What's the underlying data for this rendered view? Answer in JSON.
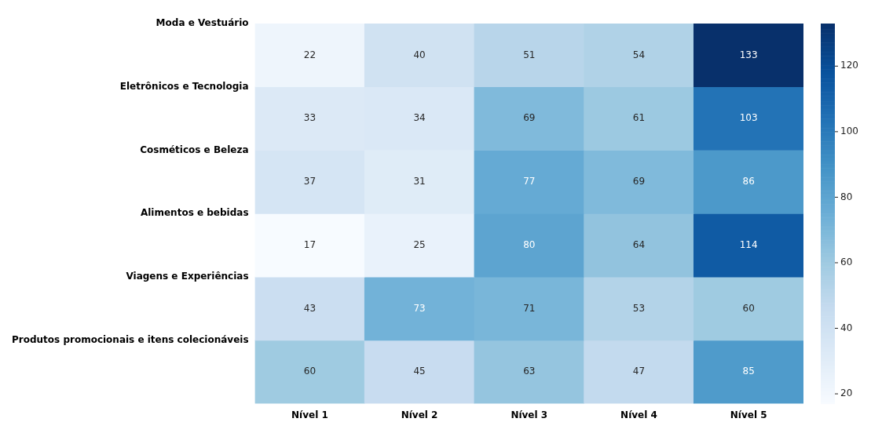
{
  "chart_data": {
    "type": "heatmap",
    "categories": [
      "Nível 1",
      "Nível 2",
      "Nível 3",
      "Nível 4",
      "Nível 5"
    ],
    "y_categories": [
      "Moda e Vestuário",
      "Eletrônicos e Tecnologia",
      "Cosméticos e Beleza",
      "Alimentos e bebidas",
      "Viagens e Experiências",
      "Produtos promocionais e itens colecionáveis"
    ],
    "cells": [
      [
        22,
        40,
        51,
        54,
        133
      ],
      [
        33,
        34,
        69,
        61,
        103
      ],
      [
        37,
        31,
        77,
        69,
        86
      ],
      [
        17,
        25,
        80,
        64,
        114
      ],
      [
        43,
        73,
        71,
        53,
        60
      ],
      [
        60,
        45,
        63,
        47,
        85
      ]
    ],
    "clim": [
      17,
      133
    ],
    "cticks": [
      20,
      40,
      60,
      80,
      100,
      120
    ],
    "data_labels": true
  }
}
